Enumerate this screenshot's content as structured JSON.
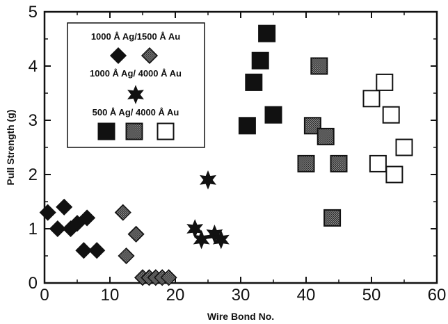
{
  "chart_data": {
    "type": "scatter",
    "xlabel": "Wire Bond No.",
    "ylabel": "Pull Strength (g)",
    "xlim": [
      0,
      60
    ],
    "ylim": [
      0,
      5
    ],
    "xticks": [
      0,
      10,
      20,
      30,
      40,
      50,
      60
    ],
    "yticks": [
      0,
      1,
      2,
      3,
      4,
      5
    ],
    "grid": false,
    "legend": "top-left",
    "legend_groups": [
      {
        "label": "1000 Å Ag/1500 Å Au",
        "swatches": [
          "diamond-solid",
          "diamond-hatched"
        ]
      },
      {
        "label": "1000 Å Ag/ 4000 Å Au",
        "swatches": [
          "star-solid"
        ]
      },
      {
        "label": "500 Å Ag/ 4000 Å Au",
        "swatches": [
          "square-solid",
          "square-hatched",
          "square-open"
        ]
      }
    ],
    "series": [
      {
        "marker": "diamond",
        "fill": "solid",
        "x": [
          0.5,
          2,
          3,
          4,
          5,
          6,
          6.5,
          8
        ],
        "y": [
          1.3,
          1.0,
          1.4,
          1.0,
          1.1,
          0.6,
          1.2,
          0.6
        ]
      },
      {
        "marker": "diamond",
        "fill": "hatched",
        "x": [
          12,
          12.5,
          14,
          15,
          16,
          17,
          18,
          19
        ],
        "y": [
          1.3,
          0.5,
          0.9,
          0.1,
          0.1,
          0.1,
          0.1,
          0.1
        ]
      },
      {
        "marker": "star",
        "fill": "solid",
        "x": [
          23,
          24,
          25,
          26,
          27
        ],
        "y": [
          1.0,
          0.8,
          1.9,
          0.9,
          0.8
        ]
      },
      {
        "marker": "square",
        "fill": "solid",
        "x": [
          31,
          32,
          33,
          34,
          35
        ],
        "y": [
          2.9,
          3.7,
          4.1,
          4.6,
          3.1
        ]
      },
      {
        "marker": "square",
        "fill": "hatched",
        "x": [
          40,
          41,
          42,
          43,
          44,
          45
        ],
        "y": [
          2.2,
          2.9,
          4.0,
          2.7,
          1.2,
          2.2
        ]
      },
      {
        "marker": "square",
        "fill": "open",
        "x": [
          50,
          51,
          52,
          53,
          53.5,
          55
        ],
        "y": [
          3.4,
          2.2,
          3.7,
          3.1,
          2.0,
          2.5
        ]
      }
    ]
  }
}
